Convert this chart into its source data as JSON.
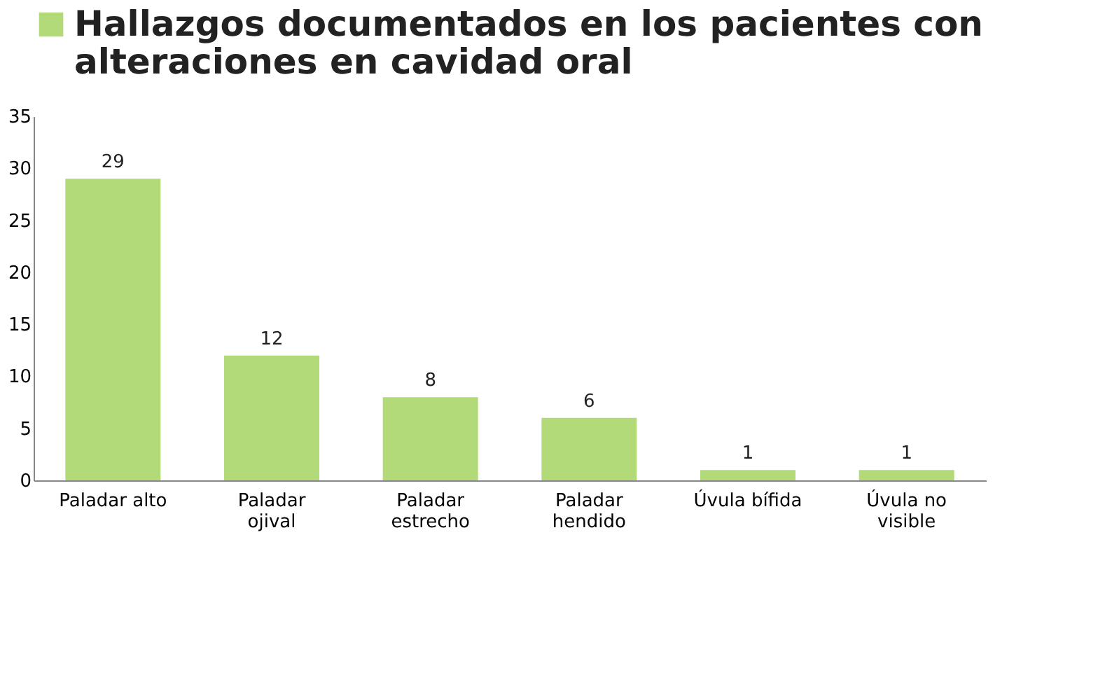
{
  "chart_data": {
    "type": "bar",
    "categories": [
      "Paladar alto",
      "Paladar\nojival",
      "Paladar\nestrecho",
      "Paladar\nhendido",
      "Úvula bífida",
      "Úvula no\nvisible"
    ],
    "series": [
      {
        "name": "Hallazgos documentados en los pacientes con\nalteraciones en cavidad oral",
        "color": "#b3da78",
        "values": [
          29,
          12,
          8,
          6,
          1,
          1
        ]
      }
    ],
    "ylim": [
      0,
      35
    ],
    "yticks": [
      0,
      5,
      10,
      15,
      20,
      25,
      30,
      35
    ],
    "data_labels": true,
    "legend": "top",
    "grid": false
  }
}
